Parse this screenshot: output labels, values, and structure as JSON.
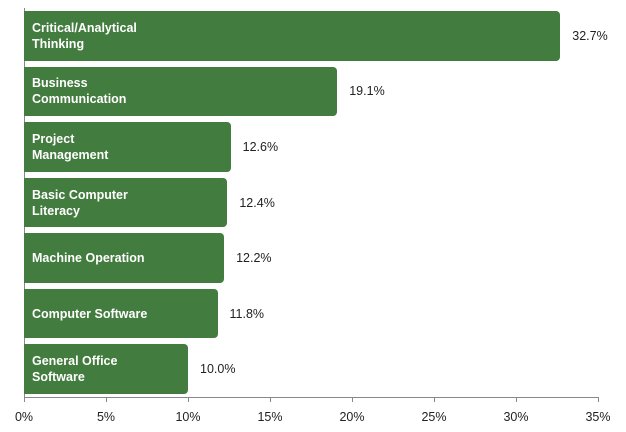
{
  "chart_data": {
    "type": "bar",
    "orientation": "horizontal",
    "categories": [
      "Critical/Analytical Thinking",
      "Business Communication",
      "Project Management",
      "Basic Computer Literacy",
      "Machine Operation",
      "Computer Software",
      "General Office Software"
    ],
    "values": [
      32.7,
      19.1,
      12.6,
      12.4,
      12.2,
      11.8,
      10.0
    ],
    "value_labels": [
      "32.7%",
      "19.1%",
      "12.6%",
      "12.4%",
      "12.2%",
      "11.8%",
      "10.0%"
    ],
    "color": "#437c3f",
    "xlim": [
      0,
      35
    ],
    "xticks": [
      {
        "value": 0,
        "label": "0%"
      },
      {
        "value": 5,
        "label": "5%"
      },
      {
        "value": 10,
        "label": "10%"
      },
      {
        "value": 15,
        "label": "15%"
      },
      {
        "value": 20,
        "label": "20%"
      },
      {
        "value": 25,
        "label": "25%"
      },
      {
        "value": 30,
        "label": "30%"
      },
      {
        "value": 35,
        "label": "35%"
      }
    ]
  }
}
